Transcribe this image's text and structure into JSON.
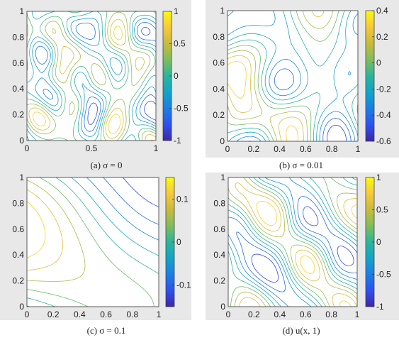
{
  "chart_data": [
    {
      "type": "contour",
      "caption": "(a) σ = 0",
      "field": "noisy",
      "xlim": [
        0,
        1
      ],
      "ylim": [
        0,
        1
      ],
      "xticks": [
        "0",
        "0.5",
        "1"
      ],
      "yticks": [
        "0",
        "0.2",
        "0.4",
        "0.6",
        "0.8",
        "1"
      ],
      "colorbar": {
        "range": [
          -1,
          1
        ],
        "ticks": [
          "1",
          "0.5",
          "0",
          "-0.5",
          "-1"
        ],
        "tick_values": [
          1,
          0.5,
          0,
          -0.5,
          -1
        ]
      },
      "levels": 8,
      "seed": 11
    },
    {
      "type": "contour",
      "caption": "(b) σ = 0.01",
      "field": "smooth",
      "xlim": [
        0,
        1
      ],
      "ylim": [
        0,
        1
      ],
      "xticks": [
        "0",
        "0.2",
        "0.4",
        "0.6",
        "0.8",
        "1"
      ],
      "yticks": [
        "0",
        "0.2",
        "0.4",
        "0.6",
        "0.8",
        "1"
      ],
      "colorbar": {
        "range": [
          -0.6,
          0.4
        ],
        "ticks": [
          "0.4",
          "0.2",
          "0",
          "-0.2",
          "-0.4",
          "-0.6"
        ],
        "tick_values": [
          0.4,
          0.2,
          0,
          -0.2,
          -0.4,
          -0.6
        ]
      },
      "levels": 9,
      "seed": 23
    },
    {
      "type": "contour",
      "caption": "(c) σ = 0.1",
      "field": "very_smooth",
      "xlim": [
        0,
        1
      ],
      "ylim": [
        0,
        1
      ],
      "xticks": [
        "0",
        "0.2",
        "0.4",
        "0.6",
        "0.8",
        "1"
      ],
      "yticks": [
        "0",
        "0.2",
        "0.4",
        "0.6",
        "0.8",
        "1"
      ],
      "colorbar": {
        "range": [
          -0.15,
          0.15
        ],
        "ticks": [
          "0.1",
          "0",
          "-0.1"
        ],
        "tick_values": [
          0.1,
          0,
          -0.1
        ]
      },
      "levels": 9,
      "seed": 5
    },
    {
      "type": "contour",
      "caption": "(d) u(x, 1)",
      "field": "medium",
      "xlim": [
        0,
        1
      ],
      "ylim": [
        0,
        1
      ],
      "xticks": [
        "0",
        "0.2",
        "0.4",
        "0.6",
        "0.8",
        "1"
      ],
      "yticks": [
        "0",
        "0.2",
        "0.4",
        "0.6",
        "0.8",
        "1"
      ],
      "colorbar": {
        "range": [
          -1,
          1
        ],
        "ticks": [
          "1",
          "0.5",
          "0",
          "-0.5",
          "-1"
        ],
        "tick_values": [
          1,
          0.5,
          0,
          -0.5,
          -1
        ]
      },
      "levels": 9,
      "seed": 37
    }
  ],
  "colormap": [
    "#3e26a8",
    "#2f51f0",
    "#1a7fe6",
    "#12a4c9",
    "#2ab59c",
    "#7fbd5c",
    "#c8bb3c",
    "#f8c83a",
    "#f9fb0e"
  ]
}
